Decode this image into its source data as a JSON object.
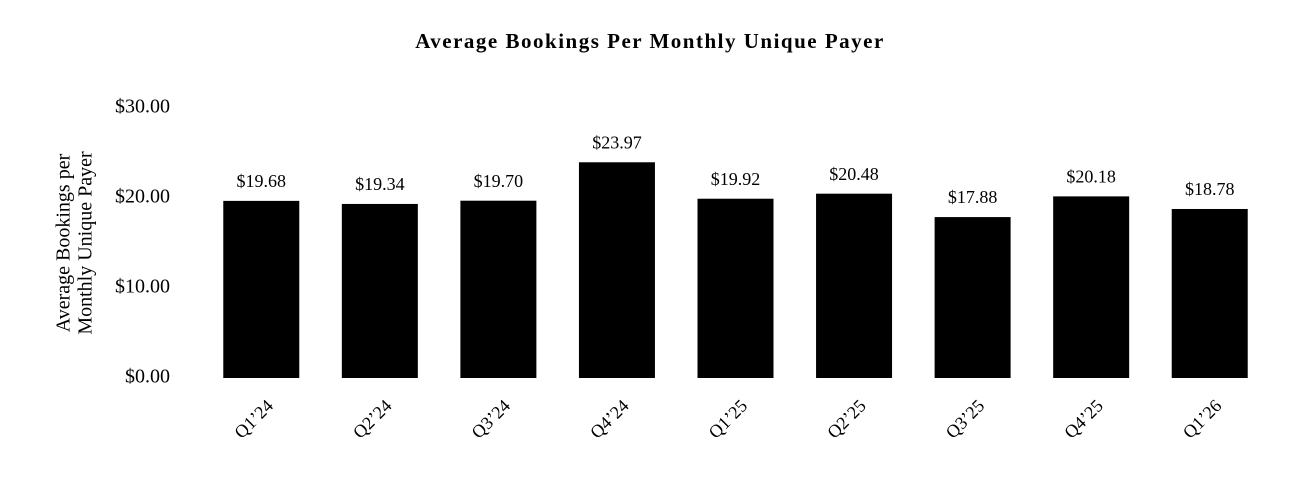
{
  "chart_data": {
    "type": "bar",
    "title": "Average Bookings Per Monthly Unique Payer",
    "y_label": [
      "Average Bookings per",
      "Monthly Unique Payer"
    ],
    "categories": [
      "Q1’24",
      "Q2’24",
      "Q3’24",
      "Q4’24",
      "Q1’25",
      "Q2’25",
      "Q3’25",
      "Q4’25",
      "Q1’26"
    ],
    "values": [
      19.68,
      19.34,
      19.7,
      23.97,
      19.92,
      20.48,
      17.88,
      20.18,
      18.78
    ],
    "value_labels": [
      "$19.68",
      "$19.34",
      "$19.70",
      "$23.97",
      "$19.92",
      "$20.48",
      "$17.88",
      "$20.18",
      "$18.78"
    ],
    "color": "#000000",
    "ylim": [
      0,
      30
    ],
    "yticks": [
      {
        "value": 0,
        "label": "$0.00"
      },
      {
        "value": 10,
        "label": "$10.00"
      },
      {
        "value": 20,
        "label": "$20.00"
      },
      {
        "value": 30,
        "label": "$30.00"
      }
    ],
    "grid": false
  }
}
